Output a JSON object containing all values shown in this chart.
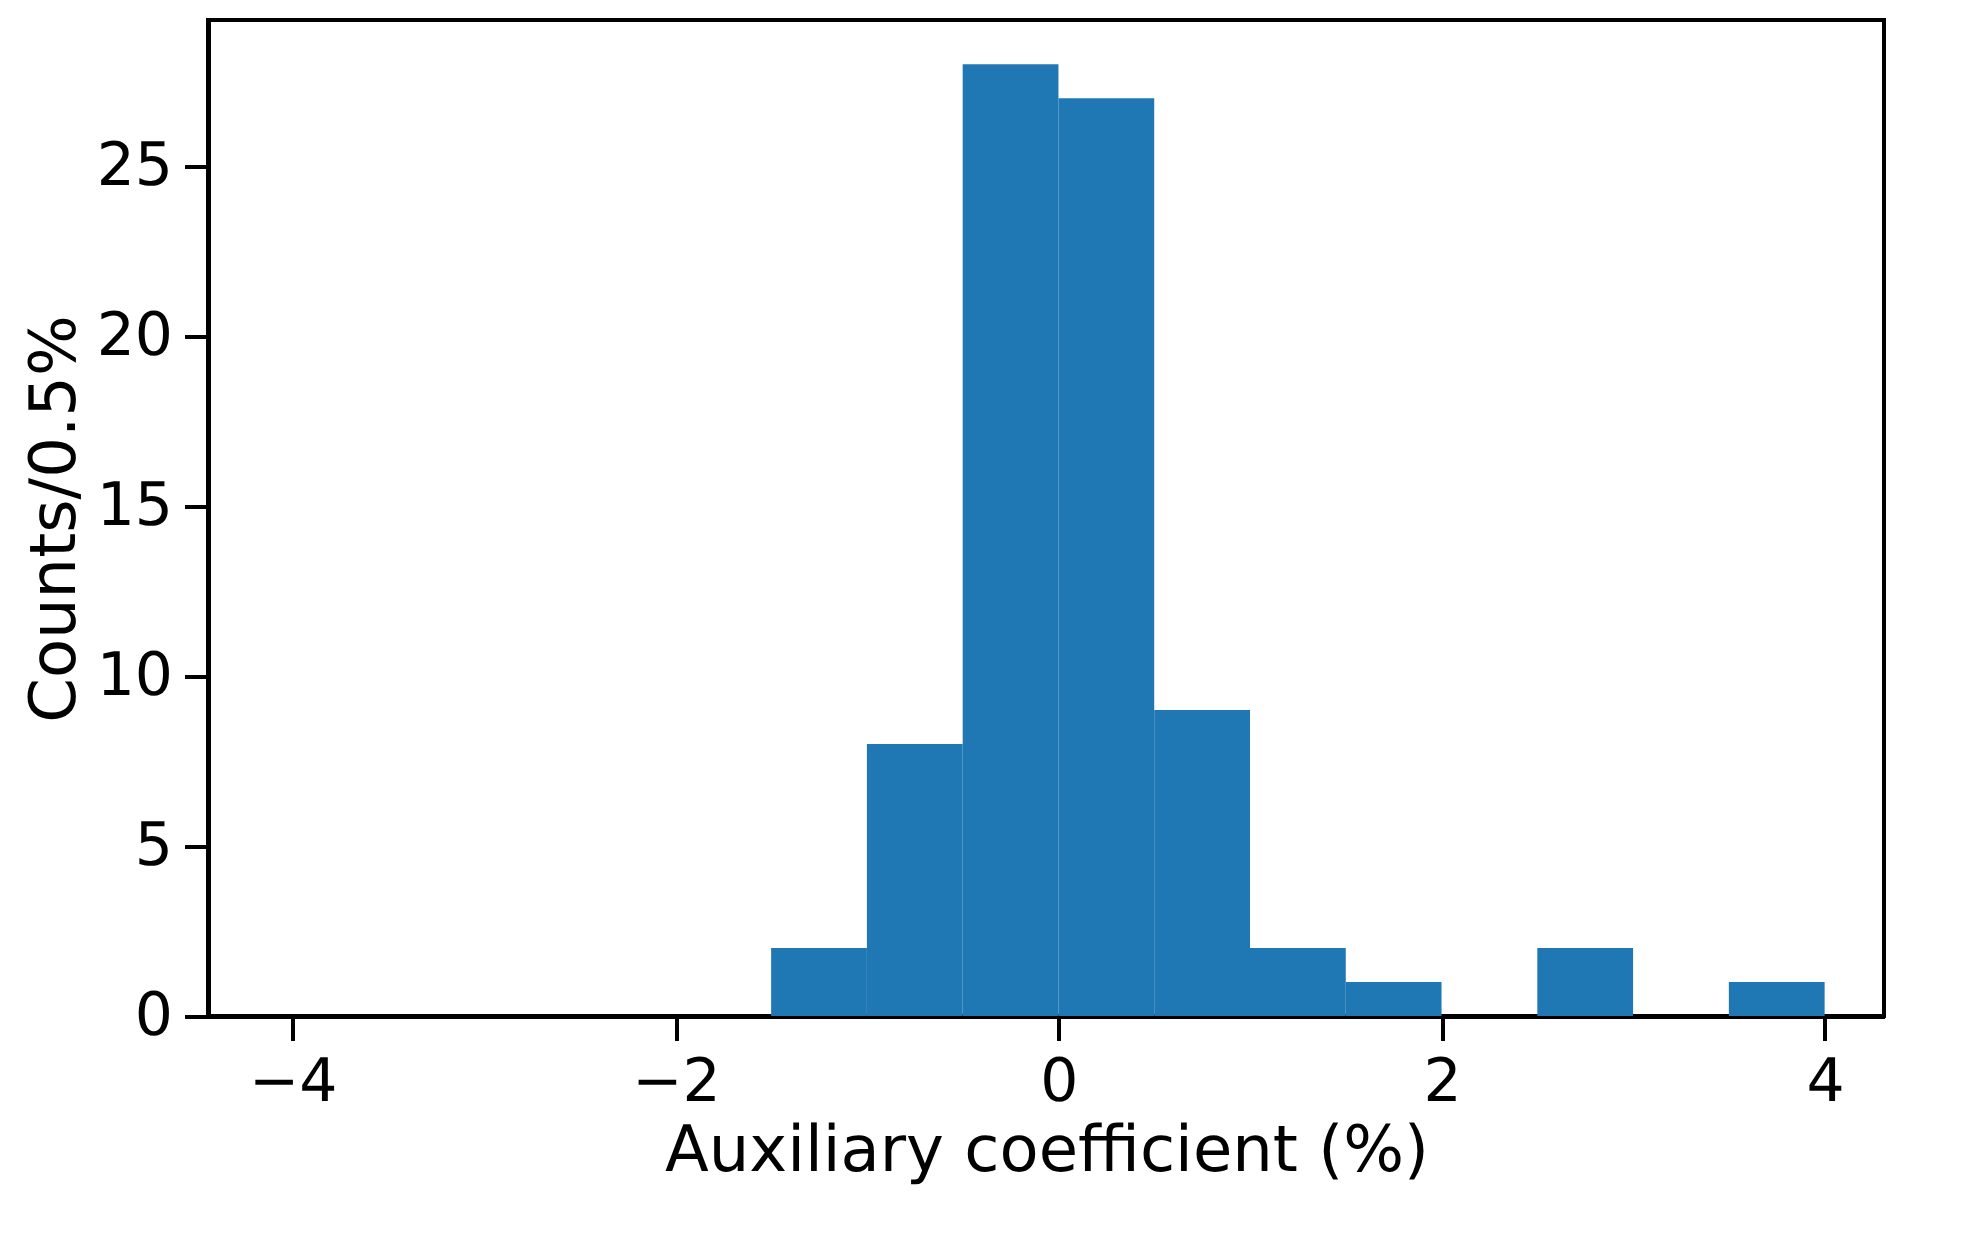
{
  "chart_data": {
    "type": "histogram",
    "xlabel": "Auxiliary coefficient (%)",
    "ylabel": "Counts/0.5%",
    "bins": [
      -1.5,
      -1.0,
      -0.5,
      0.0,
      0.5,
      1.0,
      1.5,
      2.0,
      2.5,
      3.0,
      3.5,
      4.0
    ],
    "values": [
      2,
      8,
      28,
      27,
      9,
      2,
      1,
      0,
      2,
      0,
      1
    ],
    "color": "#1f77b4",
    "xlim": [
      -4.44,
      4.31
    ],
    "ylim": [
      0,
      29.3
    ],
    "xticks": [
      {
        "value": -4,
        "label": "−4"
      },
      {
        "value": -2,
        "label": "−2"
      },
      0,
      2,
      4
    ],
    "yticks": [
      0,
      5,
      10,
      15,
      20,
      25
    ],
    "grid": false
  }
}
